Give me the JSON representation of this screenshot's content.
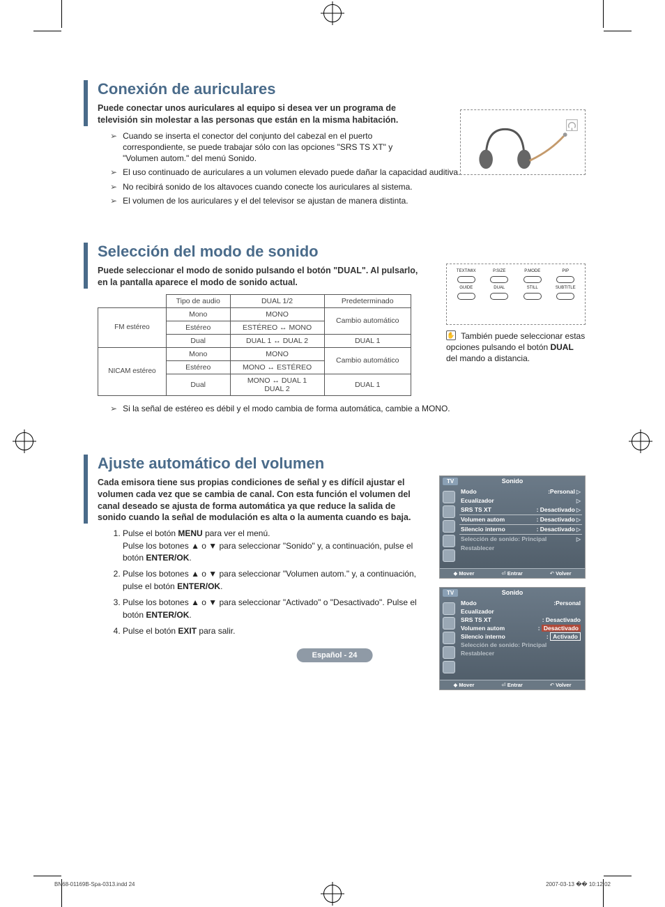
{
  "colors": {
    "accent": "#4a6b8a",
    "osd_bg_top": "#6b7a88",
    "osd_bg_bot": "#4f5c68",
    "osd_highlight": "#b04a3a",
    "pagenum_bg": "#8f9aa6",
    "text": "#222222",
    "muted": "#b7bfc6",
    "border": "#555555"
  },
  "section1": {
    "title": "Conexión de auriculares",
    "lead": "Puede conectar unos auriculares al equipo si desea ver un programa de televisión sin molestar a las personas que están en la misma habitación.",
    "notes": [
      "Cuando se inserta el conector del conjunto del cabezal en el puerto correspondiente, se puede trabajar sólo con las opciones \"SRS TS XT\" y \"Volumen autom.\" del menú Sonido.",
      "El uso continuado de auriculares a un volumen elevado puede dañar la capacidad auditiva.",
      "No recibirá sonido de los altavoces cuando conecte los auriculares al sistema.",
      "El volumen de los auriculares y el del televisor se ajustan de manera distinta."
    ]
  },
  "section2": {
    "title": "Selección del modo de sonido",
    "lead": "Puede seleccionar el modo de sonido pulsando el botón \"DUAL\". Al pulsarlo, en la pantalla aparece el modo de sonido actual.",
    "table": {
      "headers": [
        "",
        "Tipo de audio",
        "DUAL 1/2",
        "Predeterminado"
      ],
      "groups": [
        {
          "label": "FM estéreo",
          "rows": [
            {
              "tipo": "Mono",
              "dual": "MONO",
              "def": "Cambio automático",
              "def_rowspan": 2
            },
            {
              "tipo": "Estéreo",
              "dual": "ESTÉREO ↔ MONO"
            },
            {
              "tipo": "Dual",
              "dual": "DUAL 1 ↔ DUAL 2",
              "def": "DUAL 1"
            }
          ]
        },
        {
          "label": "NICAM estéreo",
          "rows": [
            {
              "tipo": "Mono",
              "dual": "MONO",
              "def": "Cambio automático",
              "def_rowspan": 2
            },
            {
              "tipo": "Estéreo",
              "dual": "MONO ↔ ESTÉREO"
            },
            {
              "tipo": "Dual",
              "dual": "MONO ↔ DUAL 1\nDUAL 2",
              "def": "DUAL 1"
            }
          ]
        }
      ]
    },
    "footnote": "Si la señal de estéreo es débil y el modo cambia de forma automática, cambie a MONO.",
    "remote_labels_top": [
      "TEXT/MIX",
      "P.SIZE",
      "P.MODE",
      "PIP"
    ],
    "remote_labels_bot": [
      "GUIDE",
      "DUAL",
      "STILL",
      "SUBTITLE"
    ],
    "tip_prefix": "También puede seleccionar estas opciones pulsando el botón ",
    "tip_bold": "DUAL",
    "tip_suffix": " del mando a distancia."
  },
  "section3": {
    "title": "Ajuste automático del volumen",
    "lead": "Cada emisora tiene sus propias condiciones de señal y es difícil ajustar el volumen cada vez que se cambia de canal. Con esta función el volumen del canal deseado se ajusta de forma automática ya que reduce la salida de sonido cuando la señal de modulación es alta o la aumenta cuando es baja.",
    "steps_html": [
      "Pulse el botón <b>MENU</b> para ver el menú.<br>Pulse los botones ▲ o ▼ para seleccionar \"Sonido\" y, a continuación, pulse el botón <b>ENTER/OK</b>.",
      "Pulse los botones ▲ o ▼ para seleccionar \"Volumen autom.\" y, a continuación, pulse el botón <b>ENTER/OK</b>.",
      "Pulse los botones ▲ o ▼ para seleccionar \"Activado\" o \"Desactivado\". Pulse el botón <b>ENTER/OK</b>.",
      "Pulse el botón <b>EXIT</b> para salir."
    ],
    "osd": {
      "tv": "TV",
      "title": "Sonido",
      "items": [
        {
          "k": "Modo",
          "v": ":Personal",
          "tri": true,
          "u": false
        },
        {
          "k": "Ecualizador",
          "v": "",
          "tri": true,
          "u": false
        },
        {
          "k": "SRS TS XT",
          "v": ": Desactivado",
          "tri": true,
          "u": true
        },
        {
          "k": "Volumen autom",
          "v": ": Desactivado",
          "tri": true,
          "u": true
        },
        {
          "k": "Silencio interno",
          "v": ": Desactivado",
          "tri": true,
          "u": true
        },
        {
          "k": "Selección de sonido: Principal",
          "v": "",
          "tri": true,
          "u": false,
          "dim": true
        },
        {
          "k": "Restablecer",
          "v": "",
          "tri": false,
          "u": false,
          "dim": true
        }
      ],
      "footer": {
        "mover": "Mover",
        "entrar": "Entrar",
        "volver": "Volver"
      }
    },
    "osd2": {
      "tv": "TV",
      "title": "Sonido",
      "items": [
        {
          "k": "Modo",
          "v": ":Personal"
        },
        {
          "k": "Ecualizador",
          "v": ""
        },
        {
          "k": "SRS TS XT",
          "v": ": Desactivado"
        },
        {
          "k": "Volumen autom",
          "v": ":",
          "hl_v": "Desactivado"
        },
        {
          "k": "Silencio interno",
          "v": ":",
          "hl_v": "Activado",
          "boxed": true
        },
        {
          "k": "Selección de sonido: Principal",
          "v": "",
          "dim": true
        },
        {
          "k": "Restablecer",
          "v": "",
          "dim": true
        }
      ],
      "footer": {
        "mover": "Mover",
        "entrar": "Entrar",
        "volver": "Volver"
      }
    }
  },
  "page_label": "Español - 24",
  "footer": {
    "left": "BN68-01169B-Spa-0313.indd   24",
    "right": "2007-03-13   �� 10:12:02"
  }
}
